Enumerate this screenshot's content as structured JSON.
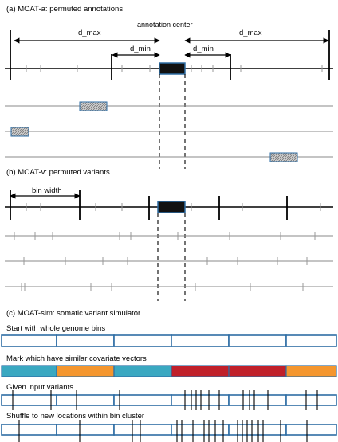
{
  "panels": {
    "a": {
      "title": "(a) MOAT-a: permuted annotations",
      "annotation_center": "annotation center",
      "d_max_left": "d_max",
      "d_max_right": "d_max",
      "d_min_left": "d_min",
      "d_min_right": "d_min"
    },
    "v": {
      "title": "(b) MOAT-v: permuted variants",
      "bin_width": "bin width"
    },
    "sim": {
      "title": "(c) MOAT-sim: somatic variant simulator",
      "step1": "Start with whole genome bins",
      "step2": "Mark which have similar covariate vectors",
      "step3": "Given input variants",
      "step4": "Shuffle to new locations within bin cluster"
    }
  },
  "colors": {
    "bin_outline": "#2e6da4",
    "cluster_teal": "#3aa8c1",
    "cluster_orange": "#f4962e",
    "cluster_red": "#c0202a",
    "annotation_fill": "#111111",
    "annotation_outline": "#2e6da4",
    "permuted_box": "#9a9a9a"
  },
  "covariate_clusters": [
    "teal",
    "orange",
    "teal",
    "teal",
    "red",
    "red",
    "orange"
  ]
}
